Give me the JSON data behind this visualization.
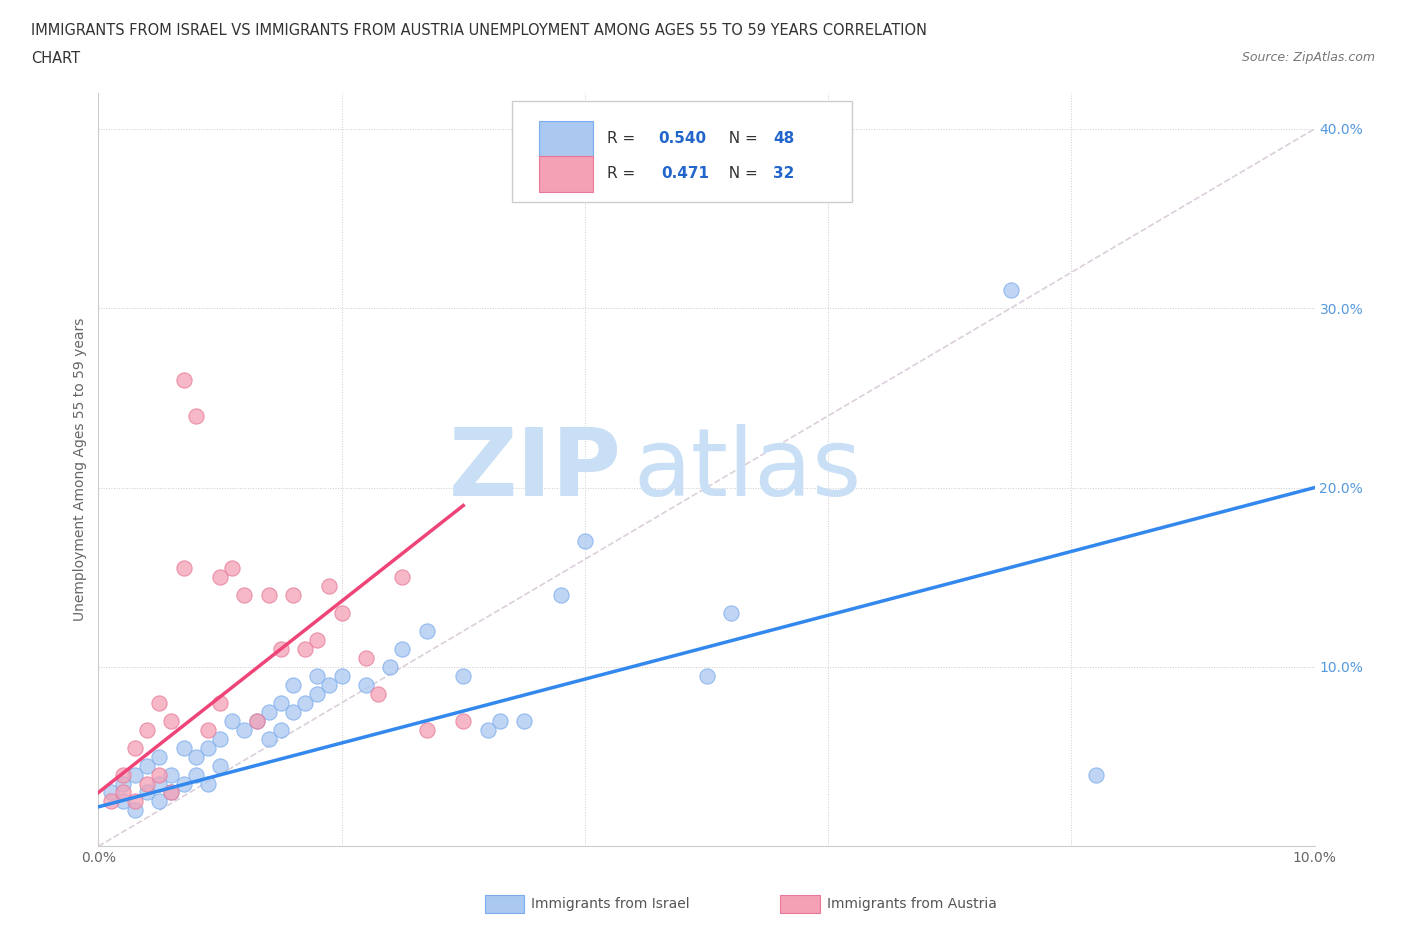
{
  "title_line1": "IMMIGRANTS FROM ISRAEL VS IMMIGRANTS FROM AUSTRIA UNEMPLOYMENT AMONG AGES 55 TO 59 YEARS CORRELATION",
  "title_line2": "CHART",
  "source": "Source: ZipAtlas.com",
  "ylabel": "Unemployment Among Ages 55 to 59 years",
  "xlim": [
    0.0,
    0.1
  ],
  "ylim": [
    0.0,
    0.42
  ],
  "xticks": [
    0.0,
    0.02,
    0.04,
    0.06,
    0.08,
    0.1
  ],
  "xticklabels": [
    "0.0%",
    "",
    "",
    "",
    "",
    "10.0%"
  ],
  "yticks": [
    0.0,
    0.1,
    0.2,
    0.3,
    0.4
  ],
  "yticklabels": [
    "",
    "10.0%",
    "20.0%",
    "30.0%",
    "40.0%"
  ],
  "israel_color": "#aac8f0",
  "austria_color": "#f4a0b5",
  "israel_edge_color": "#7aacee",
  "austria_edge_color": "#e87898",
  "israel_R": 0.54,
  "israel_N": 48,
  "austria_R": 0.471,
  "austria_N": 32,
  "israel_line_color": "#3388ee",
  "austria_line_color": "#ee4477",
  "diagonal_color": "#ddbbcc",
  "watermark_zip_color": "#c8dff5",
  "watermark_atlas_color": "#c8dff5",
  "background_color": "#ffffff",
  "israel_scatter_x": [
    0.001,
    0.002,
    0.002,
    0.003,
    0.003,
    0.004,
    0.004,
    0.005,
    0.005,
    0.005,
    0.006,
    0.006,
    0.007,
    0.007,
    0.008,
    0.008,
    0.009,
    0.009,
    0.01,
    0.01,
    0.011,
    0.012,
    0.013,
    0.014,
    0.014,
    0.015,
    0.015,
    0.016,
    0.016,
    0.017,
    0.018,
    0.018,
    0.019,
    0.02,
    0.022,
    0.024,
    0.025,
    0.027,
    0.03,
    0.032,
    0.033,
    0.035,
    0.038,
    0.04,
    0.05,
    0.052,
    0.075,
    0.082
  ],
  "israel_scatter_y": [
    0.03,
    0.025,
    0.035,
    0.02,
    0.04,
    0.03,
    0.045,
    0.025,
    0.035,
    0.05,
    0.03,
    0.04,
    0.035,
    0.055,
    0.04,
    0.05,
    0.035,
    0.055,
    0.045,
    0.06,
    0.07,
    0.065,
    0.07,
    0.075,
    0.06,
    0.08,
    0.065,
    0.075,
    0.09,
    0.08,
    0.085,
    0.095,
    0.09,
    0.095,
    0.09,
    0.1,
    0.11,
    0.12,
    0.095,
    0.065,
    0.07,
    0.07,
    0.14,
    0.17,
    0.095,
    0.13,
    0.31,
    0.04
  ],
  "austria_scatter_x": [
    0.001,
    0.002,
    0.002,
    0.003,
    0.003,
    0.004,
    0.004,
    0.005,
    0.005,
    0.006,
    0.006,
    0.007,
    0.007,
    0.008,
    0.009,
    0.01,
    0.01,
    0.011,
    0.012,
    0.013,
    0.014,
    0.015,
    0.016,
    0.017,
    0.018,
    0.019,
    0.02,
    0.022,
    0.023,
    0.025,
    0.027,
    0.03
  ],
  "austria_scatter_y": [
    0.025,
    0.03,
    0.04,
    0.025,
    0.055,
    0.035,
    0.065,
    0.04,
    0.08,
    0.03,
    0.07,
    0.26,
    0.155,
    0.24,
    0.065,
    0.08,
    0.15,
    0.155,
    0.14,
    0.07,
    0.14,
    0.11,
    0.14,
    0.11,
    0.115,
    0.145,
    0.13,
    0.105,
    0.085,
    0.15,
    0.065,
    0.07
  ],
  "israel_line_x0": 0.0,
  "israel_line_y0": 0.022,
  "israel_line_x1": 0.1,
  "israel_line_y1": 0.2,
  "austria_line_x0": 0.0,
  "austria_line_y0": 0.03,
  "austria_line_x1": 0.03,
  "austria_line_y1": 0.19
}
